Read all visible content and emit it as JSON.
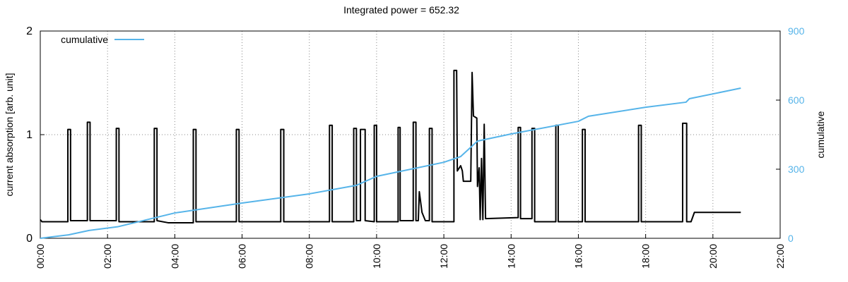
{
  "chart_data": {
    "type": "line",
    "title": "Integrated power = 652.32",
    "ylabel": "current absorption [arb. unit]",
    "y2label": "cumulative",
    "xlim": [
      0,
      22
    ],
    "xticks": [
      {
        "value": 0,
        "label": "00:00"
      },
      {
        "value": 2,
        "label": "02:00"
      },
      {
        "value": 4,
        "label": "04:00"
      },
      {
        "value": 6,
        "label": "06:00"
      },
      {
        "value": 8,
        "label": "08:00"
      },
      {
        "value": 10,
        "label": "10:00"
      },
      {
        "value": 12,
        "label": "12:00"
      },
      {
        "value": 14,
        "label": "14:00"
      },
      {
        "value": 16,
        "label": "16:00"
      },
      {
        "value": 18,
        "label": "18:00"
      },
      {
        "value": 20,
        "label": "20:00"
      },
      {
        "value": 22,
        "label": "22:00"
      }
    ],
    "ylim": [
      0,
      2
    ],
    "yticks": [
      0,
      1,
      2
    ],
    "y2lim": [
      0,
      900
    ],
    "y2ticks": [
      0,
      300,
      600,
      900
    ],
    "grid": true,
    "legend": "top-left",
    "series": [
      {
        "color": "#000000",
        "x": [
          0,
          0.05,
          0.82,
          0.82,
          0.9,
          0.9,
          1.4,
          1.4,
          1.48,
          1.48,
          2.26,
          2.26,
          2.34,
          2.34,
          3.39,
          3.39,
          3.47,
          3.47,
          3.8,
          4.55,
          4.55,
          4.63,
          4.63,
          5.83,
          5.83,
          5.91,
          5.91,
          7.15,
          7.15,
          7.24,
          7.24,
          8.6,
          8.6,
          8.68,
          8.68,
          9.32,
          9.32,
          9.4,
          9.4,
          9.52,
          9.52,
          9.66,
          9.66,
          9.93,
          9.93,
          10.0,
          10.0,
          10.64,
          10.64,
          10.7,
          10.7,
          11.09,
          11.09,
          11.17,
          11.17,
          11.24,
          11.27,
          11.35,
          11.45,
          11.57,
          11.57,
          11.65,
          11.65,
          12.3,
          12.3,
          12.38,
          12.4,
          12.5,
          12.55,
          12.58,
          12.8,
          12.84,
          12.88,
          12.98,
          13.0,
          13.05,
          13.08,
          13.12,
          13.16,
          13.2,
          13.24,
          14.21,
          14.21,
          14.28,
          14.28,
          14.62,
          14.62,
          14.7,
          14.7,
          15.33,
          15.33,
          15.4,
          15.4,
          16.12,
          16.12,
          16.2,
          16.2,
          17.79,
          17.79,
          17.87,
          17.87,
          19.1,
          19.1,
          19.22,
          19.22,
          19.35,
          19.45,
          20.83
        ],
        "values": [
          0.18,
          0.16,
          0.16,
          1.05,
          1.05,
          0.17,
          0.17,
          1.12,
          1.12,
          0.17,
          0.17,
          1.06,
          1.06,
          0.16,
          0.16,
          1.06,
          1.06,
          0.17,
          0.15,
          0.15,
          1.05,
          1.05,
          0.16,
          0.16,
          1.05,
          1.05,
          0.16,
          0.16,
          1.05,
          1.05,
          0.16,
          0.16,
          1.09,
          1.09,
          0.16,
          0.16,
          1.06,
          1.06,
          0.17,
          0.17,
          1.05,
          1.05,
          0.17,
          0.16,
          1.09,
          1.09,
          0.16,
          0.16,
          1.07,
          1.07,
          0.17,
          0.17,
          1.12,
          1.12,
          0.17,
          0.17,
          0.45,
          0.25,
          0.17,
          0.17,
          1.06,
          1.06,
          0.16,
          0.16,
          1.62,
          1.62,
          0.65,
          0.7,
          0.65,
          0.55,
          0.55,
          1.6,
          1.18,
          1.16,
          0.5,
          0.68,
          0.18,
          0.77,
          0.18,
          1.1,
          0.19,
          0.2,
          1.07,
          1.07,
          0.19,
          0.19,
          1.06,
          1.06,
          0.16,
          0.16,
          1.09,
          1.09,
          0.16,
          0.16,
          1.05,
          1.05,
          0.16,
          0.16,
          1.09,
          1.09,
          0.16,
          0.16,
          1.11,
          1.11,
          0.16,
          0.16,
          0.25,
          0.25
        ]
      },
      {
        "name": "cumulative",
        "color": "#56b4e9",
        "axis": "y2",
        "x": [
          0,
          0.84,
          1.45,
          2.3,
          4,
          6,
          8,
          9.4,
          10,
          12,
          12.5,
          13.0,
          14,
          16,
          16.3,
          18,
          19.2,
          19.3,
          20.83
        ],
        "values": [
          0,
          15,
          34,
          50,
          110,
          153,
          193,
          230,
          269,
          330,
          355,
          422,
          453,
          508,
          530,
          569,
          591,
          606,
          652
        ]
      }
    ]
  }
}
